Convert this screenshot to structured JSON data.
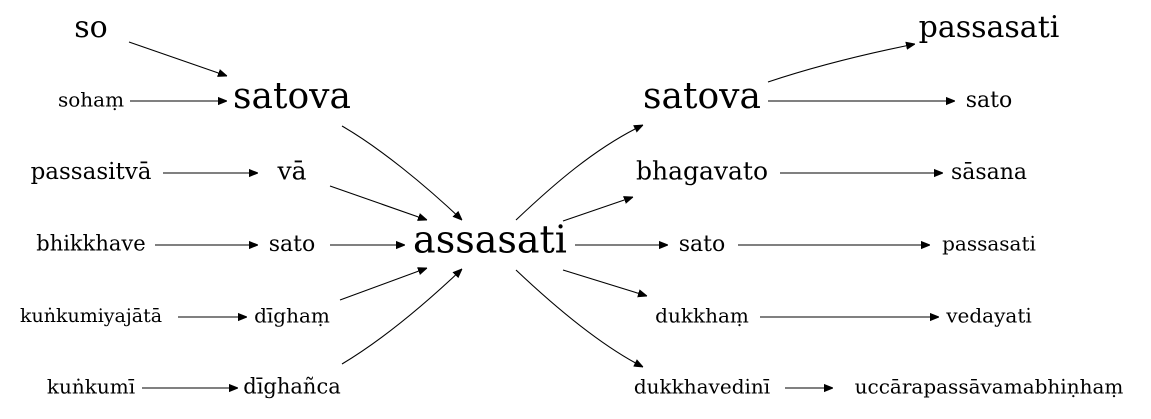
{
  "graph": {
    "center_word": "assasati",
    "left_words": {
      "so": "so",
      "soham": "sohaṃ",
      "satova": "satova",
      "passasitva": "passasitvā",
      "va": "vā",
      "bhikkhave": "bhikkhave",
      "sato": "sato",
      "kunkumiyajata": "kuṅkumiyajātā",
      "digham": "dīghaṃ",
      "kunkumi": "kuṅkumī",
      "dighanca": "dīghañca"
    },
    "right_words": {
      "satova": "satova",
      "passasati_top": "passasati",
      "sato_top": "sato",
      "bhagavato": "bhagavato",
      "sasana": "sāsana",
      "sato": "sato",
      "passasati": "passasati",
      "dukkham": "dukkhaṃ",
      "vedayati": "vedayati",
      "dukkhavedini": "dukkhavedinī",
      "uccarapassavamabhinham": "uccārapassāvamabhiṇhaṃ"
    },
    "edges": [
      [
        "left_words.so",
        "left_words.satova"
      ],
      [
        "left_words.soham",
        "left_words.satova"
      ],
      [
        "left_words.satova",
        "center_word"
      ],
      [
        "left_words.passasitva",
        "left_words.va"
      ],
      [
        "left_words.va",
        "center_word"
      ],
      [
        "left_words.bhikkhave",
        "left_words.sato"
      ],
      [
        "left_words.sato",
        "center_word"
      ],
      [
        "left_words.kunkumiyajata",
        "left_words.digham"
      ],
      [
        "left_words.digham",
        "center_word"
      ],
      [
        "left_words.kunkumi",
        "left_words.dighanca"
      ],
      [
        "left_words.dighanca",
        "center_word"
      ],
      [
        "center_word",
        "right_words.satova"
      ],
      [
        "center_word",
        "right_words.bhagavato"
      ],
      [
        "center_word",
        "right_words.sato"
      ],
      [
        "center_word",
        "right_words.dukkham"
      ],
      [
        "center_word",
        "right_words.dukkhavedini"
      ],
      [
        "right_words.satova",
        "right_words.passasati_top"
      ],
      [
        "right_words.satova",
        "right_words.sato_top"
      ],
      [
        "right_words.bhagavato",
        "right_words.sasana"
      ],
      [
        "right_words.sato",
        "right_words.passasati"
      ],
      [
        "right_words.dukkham",
        "right_words.vedayati"
      ],
      [
        "right_words.dukkhavedini",
        "right_words.uccarapassavamabhinham"
      ]
    ]
  }
}
